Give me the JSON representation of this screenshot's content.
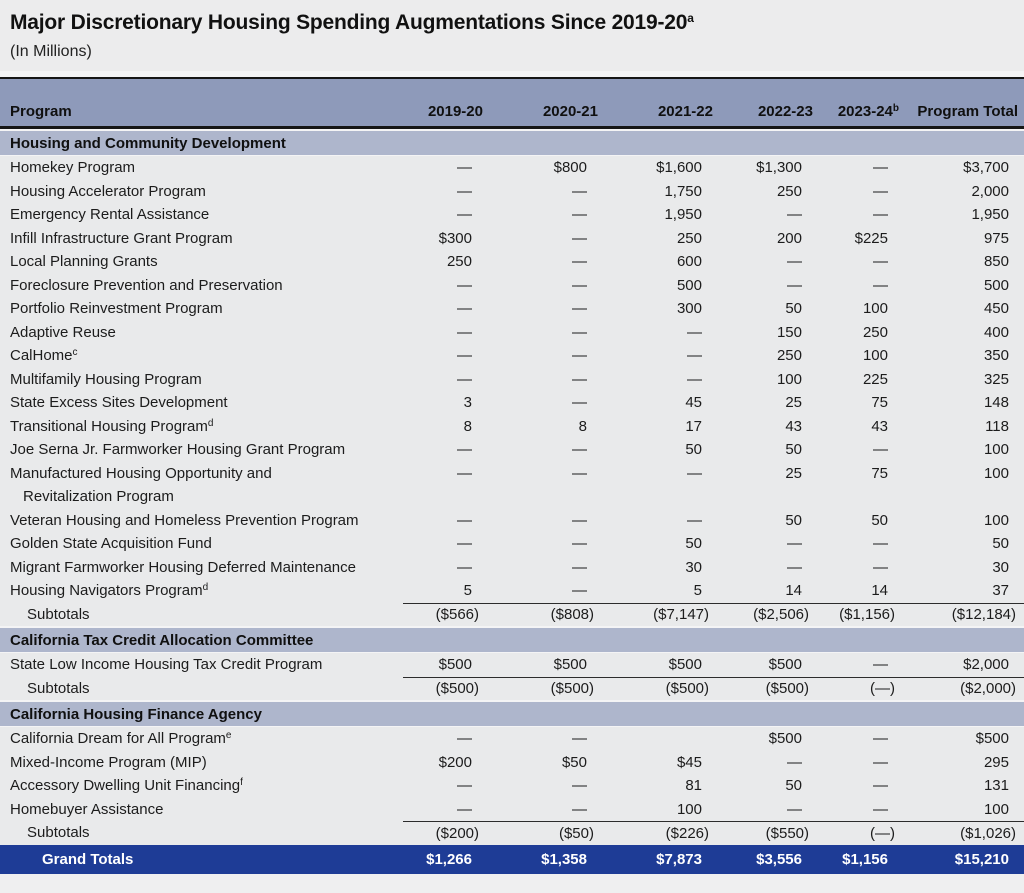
{
  "title": {
    "text": "Major Discretionary Housing Spending Augmentations Since 2019-20",
    "sup": "a"
  },
  "subtitle": "(In Millions)",
  "colors": {
    "header_bg": "#8e9aba",
    "section_bg": "#aeb6cc",
    "row_bg": "#e9eaeb",
    "grand_totals_bg": "#1e3c96",
    "rule": "#161616"
  },
  "table": {
    "columns": [
      {
        "label": "Program"
      },
      {
        "label": "2019-20"
      },
      {
        "label": "2020-21"
      },
      {
        "label": "2021-22"
      },
      {
        "label": "2022-23"
      },
      {
        "label": "2023-24",
        "sup": "b"
      },
      {
        "label": "Program Total"
      }
    ],
    "sections": [
      {
        "name": "Housing and Community Development",
        "rows": [
          {
            "label": "Homekey Program",
            "values": [
              "—",
              "$800",
              "$1,600",
              "$1,300",
              "—",
              "$3,700"
            ]
          },
          {
            "label": "Housing Accelerator Program",
            "values": [
              "—",
              "—",
              "1,750",
              "250",
              "—",
              "2,000"
            ]
          },
          {
            "label": "Emergency Rental Assistance",
            "values": [
              "—",
              "—",
              "1,950",
              "—",
              "—",
              "1,950"
            ]
          },
          {
            "label": "Infill Infrastructure Grant Program",
            "values": [
              "$300",
              "—",
              "250",
              "200",
              "$225",
              "975"
            ]
          },
          {
            "label": "Local Planning Grants",
            "values": [
              "250",
              "—",
              "600",
              "—",
              "—",
              "850"
            ]
          },
          {
            "label": "Foreclosure Prevention and Preservation",
            "values": [
              "—",
              "—",
              "500",
              "—",
              "—",
              "500"
            ]
          },
          {
            "label": "Portfolio Reinvestment Program",
            "values": [
              "—",
              "—",
              "300",
              "50",
              "100",
              "450"
            ]
          },
          {
            "label": "Adaptive Reuse",
            "values": [
              "—",
              "—",
              "—",
              "150",
              "250",
              "400"
            ]
          },
          {
            "label": "CalHome",
            "sup": "c",
            "values": [
              "—",
              "—",
              "—",
              "250",
              "100",
              "350"
            ]
          },
          {
            "label": "Multifamily Housing Program",
            "values": [
              "—",
              "—",
              "—",
              "100",
              "225",
              "325"
            ]
          },
          {
            "label": "State Excess Sites Development",
            "values": [
              "3",
              "—",
              "45",
              "25",
              "75",
              "148"
            ]
          },
          {
            "label": "Transitional Housing Program",
            "sup": "d",
            "values": [
              "8",
              "8",
              "17",
              "43",
              "43",
              "118"
            ]
          },
          {
            "label": "Joe Serna Jr. Farmworker Housing Grant Program",
            "values": [
              "—",
              "—",
              "50",
              "50",
              "—",
              "100"
            ]
          },
          {
            "label": "Manufactured Housing Opportunity and",
            "label2": "Revitalization Program",
            "values": [
              "—",
              "—",
              "—",
              "25",
              "75",
              "100"
            ]
          },
          {
            "label": "Veteran Housing and Homeless Prevention Program",
            "values": [
              "—",
              "—",
              "—",
              "50",
              "50",
              "100"
            ]
          },
          {
            "label": "Golden State Acquisition Fund",
            "values": [
              "—",
              "—",
              "50",
              "—",
              "—",
              "50"
            ]
          },
          {
            "label": "Migrant Farmworker Housing Deferred Maintenance",
            "values": [
              "—",
              "—",
              "30",
              "—",
              "—",
              "30"
            ]
          },
          {
            "label": "Housing Navigators Program",
            "sup": "d",
            "values": [
              "5",
              "—",
              "5",
              "14",
              "14",
              "37"
            ]
          }
        ],
        "subtotals": {
          "label": "Subtotals",
          "values": [
            "($566)",
            "($808)",
            "($7,147)",
            "($2,506)",
            "($1,156)",
            "($12,184)"
          ]
        }
      },
      {
        "name": "California Tax Credit Allocation Committee",
        "rows": [
          {
            "label": "State Low Income Housing Tax Credit Program",
            "values": [
              "$500",
              "$500",
              "$500",
              "$500",
              "—",
              "$2,000"
            ]
          }
        ],
        "subtotals": {
          "label": "Subtotals",
          "values": [
            "($500)",
            "($500)",
            "($500)",
            "($500)",
            "(—)",
            "($2,000)"
          ]
        }
      },
      {
        "name": "California Housing Finance Agency",
        "rows": [
          {
            "label": "California Dream for All Program",
            "sup": "e",
            "values": [
              "—",
              "—",
              "",
              "$500",
              "—",
              "$500"
            ]
          },
          {
            "label": "Mixed-Income Program (MIP)",
            "values": [
              "$200",
              "$50",
              "$45",
              "—",
              "—",
              "295"
            ]
          },
          {
            "label": "Accessory Dwelling Unit Financing",
            "sup": "f",
            "values": [
              "—",
              "—",
              "81",
              "50",
              "—",
              "131"
            ]
          },
          {
            "label": "Homebuyer Assistance",
            "values": [
              "—",
              "—",
              "100",
              "—",
              "—",
              "100"
            ]
          }
        ],
        "subtotals": {
          "label": "Subtotals",
          "values": [
            "($200)",
            "($50)",
            "($226)",
            "($550)",
            "(—)",
            "($1,026)"
          ]
        }
      }
    ],
    "grand_totals": {
      "label": "Grand Totals",
      "values": [
        "$1,266",
        "$1,358",
        "$7,873",
        "$3,556",
        "$1,156",
        "$15,210"
      ]
    }
  }
}
